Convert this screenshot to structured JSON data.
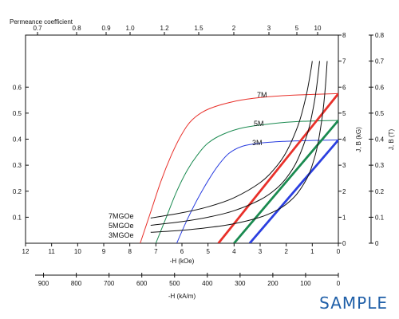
{
  "chart_data": {
    "type": "line",
    "x_axis_label": "-H (kOe)",
    "x_axis_range": [
      12,
      0
    ],
    "x_ticks": [
      12,
      11,
      10,
      9,
      8,
      7,
      6,
      5,
      4,
      3,
      2,
      1,
      0
    ],
    "x2_axis_label": "-H (kA/m)",
    "x2_ticks": [
      900,
      800,
      700,
      600,
      500,
      400,
      300,
      200,
      100,
      0
    ],
    "top_axis_label": "Permeance coefficient",
    "top_ticks": [
      "0.7",
      "0.8",
      "0.9",
      "1.0",
      "1.2",
      "1.5",
      "2",
      "3",
      "5",
      "10"
    ],
    "y_left_ticks": [
      "0.1",
      "0.2",
      "0.3",
      "0.4",
      "0.5",
      "0.6"
    ],
    "y_right1_label": "J, B (kG)",
    "y_right1_ticks": [
      "0",
      "1",
      "2",
      "3",
      "4",
      "5",
      "6",
      "7",
      "8"
    ],
    "y_right2_label": "J, B (T)",
    "y_right2_ticks": [
      "0",
      "0.1",
      "0.2",
      "0.3",
      "0.4",
      "0.5",
      "0.6",
      "0.7",
      "0.8"
    ],
    "y_range_kG": [
      0,
      8
    ],
    "grade_labels_J": [
      "7M",
      "5M",
      "3M"
    ],
    "grade_labels_energy": [
      "7MGOe",
      "5MGOe",
      "3MGOe"
    ],
    "watermark": "SAMPLE",
    "series": [
      {
        "name": "7M",
        "kind": "J",
        "color": "#e8302a",
        "points": [
          [
            7.6,
            0
          ],
          [
            7.2,
            1.2
          ],
          [
            6.8,
            2.4
          ],
          [
            6.4,
            3.4
          ],
          [
            6,
            4.2
          ],
          [
            5.6,
            4.75
          ],
          [
            5,
            5.15
          ],
          [
            4,
            5.45
          ],
          [
            3,
            5.6
          ],
          [
            2,
            5.68
          ],
          [
            1,
            5.72
          ],
          [
            0,
            5.75
          ]
        ]
      },
      {
        "name": "5M",
        "kind": "J",
        "color": "#1a8a50",
        "points": [
          [
            7,
            0
          ],
          [
            6.6,
            1
          ],
          [
            6.2,
            2
          ],
          [
            5.8,
            2.8
          ],
          [
            5.4,
            3.4
          ],
          [
            5,
            3.85
          ],
          [
            4.4,
            4.2
          ],
          [
            3.6,
            4.45
          ],
          [
            2.5,
            4.6
          ],
          [
            1.5,
            4.68
          ],
          [
            0,
            4.72
          ]
        ]
      },
      {
        "name": "3M",
        "kind": "J",
        "color": "#2b3fe0",
        "points": [
          [
            6.2,
            0
          ],
          [
            5.8,
            0.9
          ],
          [
            5.4,
            1.7
          ],
          [
            5,
            2.4
          ],
          [
            4.6,
            3
          ],
          [
            4.2,
            3.45
          ],
          [
            3.7,
            3.72
          ],
          [
            3,
            3.85
          ],
          [
            2,
            3.92
          ],
          [
            1,
            3.95
          ],
          [
            0,
            3.97
          ]
        ]
      },
      {
        "name": "7M-B",
        "kind": "B",
        "color": "#e8302a",
        "points": [
          [
            4.6,
            0
          ],
          [
            0,
            5.75
          ]
        ]
      },
      {
        "name": "5M-B",
        "kind": "B",
        "color": "#1a8a50",
        "points": [
          [
            4,
            0
          ],
          [
            0,
            4.72
          ]
        ]
      },
      {
        "name": "3M-B",
        "kind": "B",
        "color": "#2b3fe0",
        "points": [
          [
            3.4,
            0
          ],
          [
            0,
            3.97
          ]
        ]
      },
      {
        "name": "7MGOe",
        "kind": "energy",
        "color": "#111111",
        "points": [
          [
            7.2,
            0.97
          ],
          [
            6,
            1.17
          ],
          [
            5,
            1.4
          ],
          [
            4,
            1.75
          ],
          [
            3,
            2.33
          ],
          [
            2.4,
            2.92
          ],
          [
            2,
            3.5
          ],
          [
            1.6,
            4.38
          ],
          [
            1.4,
            5
          ],
          [
            1.2,
            5.83
          ],
          [
            1.05,
            6.67
          ],
          [
            1,
            7
          ]
        ]
      },
      {
        "name": "5MGOe",
        "kind": "energy",
        "color": "#111111",
        "points": [
          [
            7.2,
            0.69
          ],
          [
            6,
            0.83
          ],
          [
            5,
            1
          ],
          [
            4,
            1.25
          ],
          [
            3,
            1.67
          ],
          [
            2.4,
            2.08
          ],
          [
            2,
            2.5
          ],
          [
            1.6,
            3.13
          ],
          [
            1.2,
            4.17
          ],
          [
            1,
            5
          ],
          [
            0.85,
            5.88
          ],
          [
            0.72,
            7
          ]
        ]
      },
      {
        "name": "3MGOe",
        "kind": "energy",
        "color": "#111111",
        "points": [
          [
            7.2,
            0.42
          ],
          [
            6,
            0.5
          ],
          [
            5,
            0.6
          ],
          [
            4,
            0.75
          ],
          [
            3,
            1
          ],
          [
            2.4,
            1.25
          ],
          [
            2,
            1.5
          ],
          [
            1.6,
            1.88
          ],
          [
            1.2,
            2.5
          ],
          [
            1,
            3
          ],
          [
            0.8,
            3.75
          ],
          [
            0.6,
            5
          ],
          [
            0.5,
            6
          ],
          [
            0.43,
            7
          ]
        ]
      }
    ]
  }
}
